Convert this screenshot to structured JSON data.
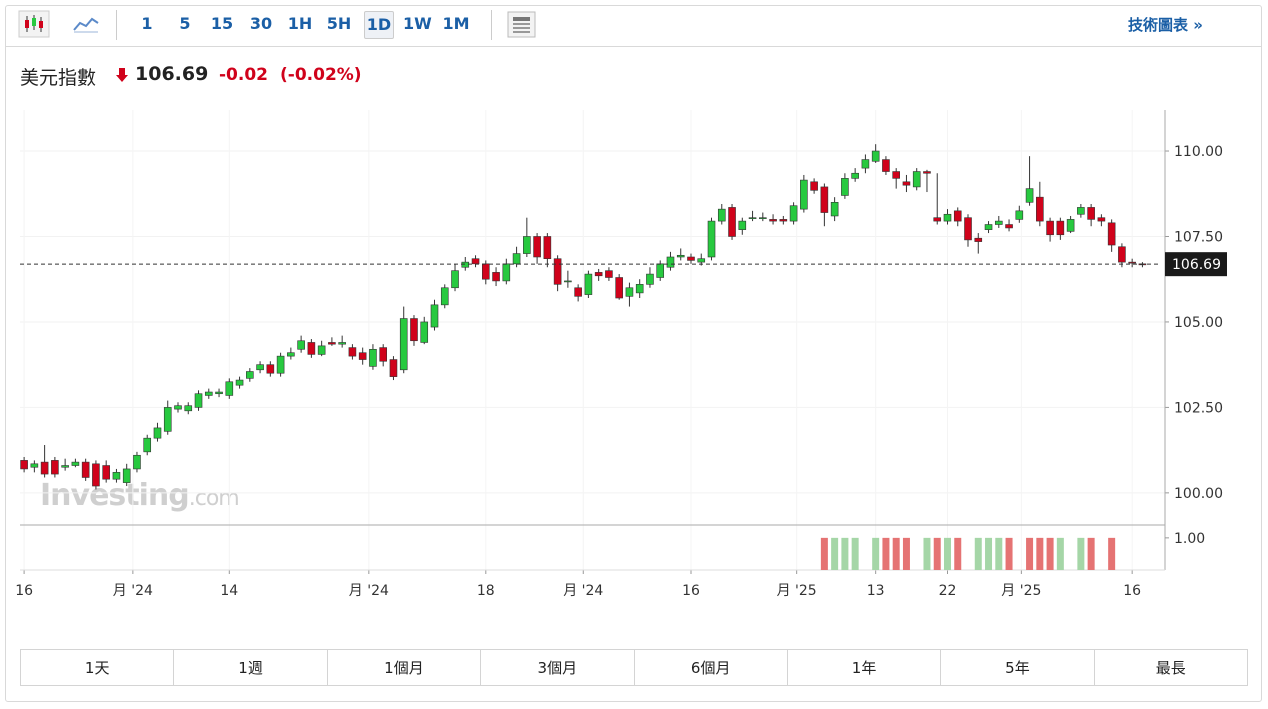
{
  "toolbar": {
    "intervals": [
      "1",
      "5",
      "15",
      "30",
      "1H",
      "5H",
      "1D",
      "1W",
      "1M"
    ],
    "active_interval": 6,
    "link": "技術圖表 »"
  },
  "quote": {
    "name": "美元指數",
    "price": 106.69,
    "change": -0.02,
    "change_pct": {
      "value": -0.02,
      "label": "(-0.02%)"
    }
  },
  "chart_data": {
    "type": "candlestick",
    "watermark": [
      "Investing",
      ".com"
    ],
    "up_color": "#27c93f",
    "down_color": "#d0021b",
    "grid": true,
    "ylim": [
      99.06,
      111.2
    ],
    "yticks": [
      {
        "value": 100,
        "label": "100.00"
      },
      {
        "value": 102.5,
        "label": "102.50"
      },
      {
        "value": 105,
        "label": "105.00"
      },
      {
        "value": 107.5,
        "label": "107.50"
      },
      {
        "value": 110,
        "label": "110.00"
      }
    ],
    "current": 106.69,
    "xlim": [
      -0.4,
      111.2
    ],
    "xticks": [
      {
        "value": 0,
        "label": "16"
      },
      {
        "value": 10.6,
        "label": "月 '24"
      },
      {
        "value": 20,
        "label": "14"
      },
      {
        "value": 33.6,
        "label": "月 '24"
      },
      {
        "value": 45,
        "label": "18"
      },
      {
        "value": 54.5,
        "label": "月 '24"
      },
      {
        "value": 65,
        "label": "16"
      },
      {
        "value": 75.3,
        "label": "月 '25"
      },
      {
        "value": 83,
        "label": "13"
      },
      {
        "value": 90,
        "label": "22"
      },
      {
        "value": 97.2,
        "label": "月 '25"
      },
      {
        "value": 108,
        "label": "16"
      }
    ],
    "ohlc": {
      "open": [
        100.95,
        100.75,
        100.9,
        100.95,
        100.75,
        100.8,
        100.9,
        100.85,
        100.8,
        100.4,
        100.3,
        100.7,
        101.2,
        101.6,
        101.8,
        102.45,
        102.4,
        102.5,
        102.85,
        102.9,
        102.85,
        103.15,
        103.35,
        103.6,
        103.75,
        103.5,
        104.0,
        104.2,
        104.4,
        104.05,
        104.4,
        104.35,
        104.25,
        104.1,
        103.7,
        104.25,
        103.9,
        103.6,
        105.1,
        104.4,
        104.85,
        105.5,
        106.0,
        106.6,
        106.85,
        106.7,
        106.45,
        106.2,
        106.7,
        107.0,
        107.5,
        107.5,
        106.85,
        106.2,
        106.0,
        105.8,
        106.45,
        106.5,
        106.3,
        105.75,
        105.85,
        106.1,
        106.3,
        106.6,
        106.9,
        106.9,
        106.75,
        106.9,
        107.95,
        108.35,
        107.7,
        108.05,
        108.05,
        108.0,
        108.0,
        107.95,
        108.3,
        109.1,
        108.95,
        108.1,
        108.7,
        109.2,
        109.5,
        109.7,
        109.75,
        109.4,
        109.1,
        108.95,
        109.4,
        108.05,
        107.95,
        108.25,
        108.05,
        107.45,
        107.7,
        107.85,
        107.85,
        108.0,
        108.5,
        108.65,
        107.95,
        107.95,
        107.65,
        108.15,
        108.35,
        108.05,
        107.9,
        107.2,
        106.75,
        106.7
      ],
      "high": [
        101.05,
        100.95,
        101.4,
        101.05,
        101.0,
        101.0,
        101.0,
        100.95,
        100.95,
        100.7,
        100.85,
        101.2,
        101.7,
        102.05,
        102.7,
        102.65,
        102.65,
        103.0,
        103.05,
        103.05,
        103.35,
        103.4,
        103.65,
        103.85,
        103.85,
        104.1,
        104.25,
        104.6,
        104.5,
        104.45,
        104.55,
        104.6,
        104.35,
        104.25,
        104.35,
        104.35,
        104.0,
        105.45,
        105.2,
        105.15,
        105.65,
        106.1,
        106.7,
        106.9,
        106.95,
        106.8,
        106.6,
        106.85,
        107.2,
        108.05,
        107.6,
        107.6,
        106.95,
        106.5,
        106.1,
        106.5,
        106.55,
        106.6,
        106.4,
        106.15,
        106.25,
        106.6,
        106.8,
        107.05,
        107.15,
        107.0,
        107.0,
        108.05,
        108.45,
        108.45,
        108.05,
        108.25,
        108.2,
        108.15,
        108.1,
        108.5,
        109.3,
        109.2,
        109.05,
        108.65,
        109.35,
        109.5,
        109.9,
        110.2,
        109.85,
        109.5,
        109.3,
        109.5,
        109.45,
        109.35,
        108.3,
        108.35,
        108.15,
        107.6,
        107.95,
        108.1,
        108.0,
        108.4,
        109.85,
        109.1,
        108.05,
        108.05,
        108.1,
        108.45,
        108.45,
        108.15,
        108.0,
        107.3,
        106.85,
        106.75
      ],
      "low": [
        100.6,
        100.6,
        100.45,
        100.45,
        100.65,
        100.75,
        100.35,
        100.1,
        100.3,
        100.3,
        100.2,
        100.6,
        101.1,
        101.5,
        101.7,
        102.35,
        102.3,
        102.4,
        102.75,
        102.8,
        102.75,
        103.05,
        103.25,
        103.5,
        103.4,
        103.4,
        103.9,
        104.1,
        103.95,
        104.0,
        104.3,
        104.25,
        103.9,
        103.75,
        103.6,
        103.7,
        103.3,
        103.5,
        104.3,
        104.35,
        104.75,
        105.4,
        105.9,
        106.5,
        106.6,
        106.1,
        106.05,
        106.1,
        106.6,
        106.9,
        106.7,
        106.6,
        105.9,
        106.0,
        105.6,
        105.7,
        106.2,
        106.2,
        105.65,
        105.45,
        105.7,
        106.0,
        106.2,
        106.5,
        106.8,
        106.7,
        106.65,
        106.8,
        107.85,
        107.4,
        107.55,
        107.95,
        107.95,
        107.85,
        107.85,
        107.85,
        108.2,
        108.75,
        107.8,
        107.95,
        108.6,
        109.1,
        109.35,
        109.65,
        109.3,
        108.9,
        108.8,
        108.85,
        108.8,
        107.85,
        107.85,
        107.8,
        107.2,
        107.0,
        107.6,
        107.75,
        107.65,
        107.9,
        108.4,
        107.8,
        107.35,
        107.4,
        107.6,
        108.05,
        107.8,
        107.8,
        107.05,
        106.6,
        106.6,
        106.6
      ],
      "close": [
        100.7,
        100.85,
        100.55,
        100.55,
        100.8,
        100.9,
        100.45,
        100.2,
        100.4,
        100.6,
        100.7,
        101.1,
        101.6,
        101.9,
        102.5,
        102.55,
        102.55,
        102.9,
        102.95,
        102.95,
        103.25,
        103.3,
        103.55,
        103.75,
        103.5,
        104.0,
        104.1,
        104.45,
        104.05,
        104.3,
        104.35,
        104.4,
        104.0,
        103.9,
        104.2,
        103.85,
        103.4,
        105.1,
        104.45,
        105.0,
        105.5,
        106.0,
        106.5,
        106.75,
        106.7,
        106.25,
        106.2,
        106.7,
        107.0,
        107.5,
        106.9,
        106.85,
        106.1,
        106.2,
        105.75,
        106.4,
        106.35,
        106.3,
        105.7,
        106.0,
        106.1,
        106.4,
        106.7,
        106.9,
        106.95,
        106.8,
        106.85,
        107.95,
        108.3,
        107.5,
        107.95,
        108.05,
        108.05,
        107.95,
        107.95,
        108.4,
        109.15,
        108.85,
        108.2,
        108.5,
        109.2,
        109.35,
        109.75,
        110.0,
        109.4,
        109.2,
        109.0,
        109.4,
        109.35,
        107.95,
        108.15,
        107.95,
        107.4,
        107.35,
        107.85,
        107.95,
        107.75,
        108.25,
        108.9,
        107.95,
        107.55,
        107.55,
        108.0,
        108.35,
        108.0,
        107.95,
        107.25,
        106.75,
        106.72,
        106.69
      ]
    },
    "volume": {
      "ylim": [
        0,
        1.4
      ],
      "yticks": [
        {
          "value": 1,
          "label": "1.00"
        }
      ],
      "positions": [
        78,
        79,
        80,
        81,
        83,
        84,
        85,
        86,
        88,
        89,
        90,
        91,
        93,
        94,
        95,
        96,
        98,
        99,
        100,
        101,
        103,
        104,
        106
      ],
      "values": [
        1,
        1,
        1,
        1,
        1,
        1,
        1,
        1,
        1,
        1,
        1,
        1,
        1,
        1,
        1,
        1,
        1,
        1,
        1,
        1,
        1,
        1,
        1
      ],
      "colors": [
        "#e57373",
        "#a5d6a7",
        "#a5d6a7",
        "#a5d6a7",
        "#a5d6a7",
        "#e57373",
        "#e57373",
        "#e57373",
        "#a5d6a7",
        "#e57373",
        "#a5d6a7",
        "#e57373",
        "#a5d6a7",
        "#a5d6a7",
        "#a5d6a7",
        "#e57373",
        "#e57373",
        "#e57373",
        "#e57373",
        "#a5d6a7",
        "#a5d6a7",
        "#e57373",
        "#e57373"
      ]
    }
  },
  "ranges": [
    "1天",
    "1週",
    "1個月",
    "3個月",
    "6個月",
    "1年",
    "5年",
    "最長"
  ]
}
